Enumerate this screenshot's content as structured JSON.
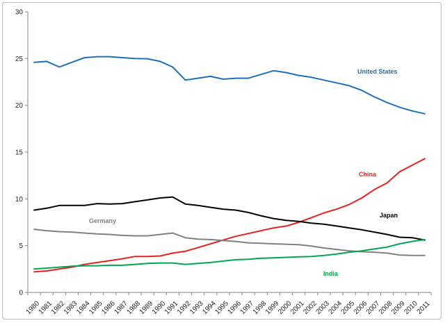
{
  "chart_data": {
    "type": "line",
    "title": "",
    "xlabel": "",
    "ylabel": "",
    "ylim": [
      0,
      30
    ],
    "yticks": [
      0,
      5,
      10,
      15,
      20,
      25,
      30
    ],
    "grid": false,
    "legend": "inline labels",
    "x": [
      "1980",
      "1981",
      "1982",
      "1983",
      "1984",
      "1985",
      "1986",
      "1987",
      "1988",
      "1989",
      "1990",
      "1991",
      "1992",
      "1993",
      "1994",
      "1995",
      "1996",
      "1997",
      "1998",
      "1999",
      "2000",
      "2001",
      "2002",
      "2003",
      "2004",
      "2005",
      "2006",
      "2007",
      "2008",
      "2009",
      "2010",
      "2011"
    ],
    "series": [
      {
        "name": "United States",
        "color": "#1f6fb4",
        "values": [
          24.6,
          24.7,
          24.1,
          24.6,
          25.1,
          25.2,
          25.2,
          25.1,
          25.0,
          24.98,
          24.7,
          24.1,
          22.7,
          22.9,
          23.1,
          22.8,
          22.9,
          22.9,
          23.3,
          23.7,
          23.5,
          23.2,
          23.0,
          22.7,
          22.4,
          22.1,
          21.6,
          20.9,
          20.3,
          19.8,
          19.4,
          19.1
        ]
      },
      {
        "name": "China",
        "color": "#e8201e",
        "values": [
          2.2,
          2.3,
          2.5,
          2.7,
          3.0,
          3.2,
          3.4,
          3.6,
          3.85,
          3.85,
          3.9,
          4.2,
          4.4,
          4.8,
          5.2,
          5.6,
          6.0,
          6.3,
          6.6,
          6.9,
          7.1,
          7.5,
          8.0,
          8.5,
          8.9,
          9.4,
          10.1,
          11.0,
          11.7,
          12.9,
          13.6,
          14.3
        ]
      },
      {
        "name": "Japan",
        "color": "#000000",
        "values": [
          8.8,
          9.0,
          9.3,
          9.3,
          9.3,
          9.5,
          9.45,
          9.5,
          9.7,
          9.9,
          10.1,
          10.2,
          9.45,
          9.3,
          9.1,
          8.9,
          8.8,
          8.55,
          8.2,
          7.9,
          7.7,
          7.6,
          7.4,
          7.3,
          7.1,
          6.9,
          6.7,
          6.45,
          6.2,
          5.9,
          5.85,
          5.6
        ]
      },
      {
        "name": "Germany",
        "color": "#808080",
        "values": [
          6.75,
          6.6,
          6.5,
          6.45,
          6.35,
          6.25,
          6.2,
          6.1,
          6.05,
          6.05,
          6.2,
          6.35,
          5.85,
          5.7,
          5.65,
          5.55,
          5.45,
          5.3,
          5.25,
          5.2,
          5.15,
          5.1,
          4.95,
          4.75,
          4.6,
          4.45,
          4.35,
          4.3,
          4.2,
          4.0,
          3.95,
          3.95
        ]
      },
      {
        "name": "India",
        "color": "#00a550",
        "values": [
          2.5,
          2.6,
          2.7,
          2.8,
          2.85,
          2.85,
          2.9,
          2.9,
          3.0,
          3.1,
          3.15,
          3.15,
          3.0,
          3.1,
          3.2,
          3.35,
          3.5,
          3.55,
          3.65,
          3.7,
          3.75,
          3.8,
          3.85,
          3.95,
          4.1,
          4.3,
          4.45,
          4.65,
          4.85,
          5.2,
          5.45,
          5.65
        ]
      }
    ]
  }
}
